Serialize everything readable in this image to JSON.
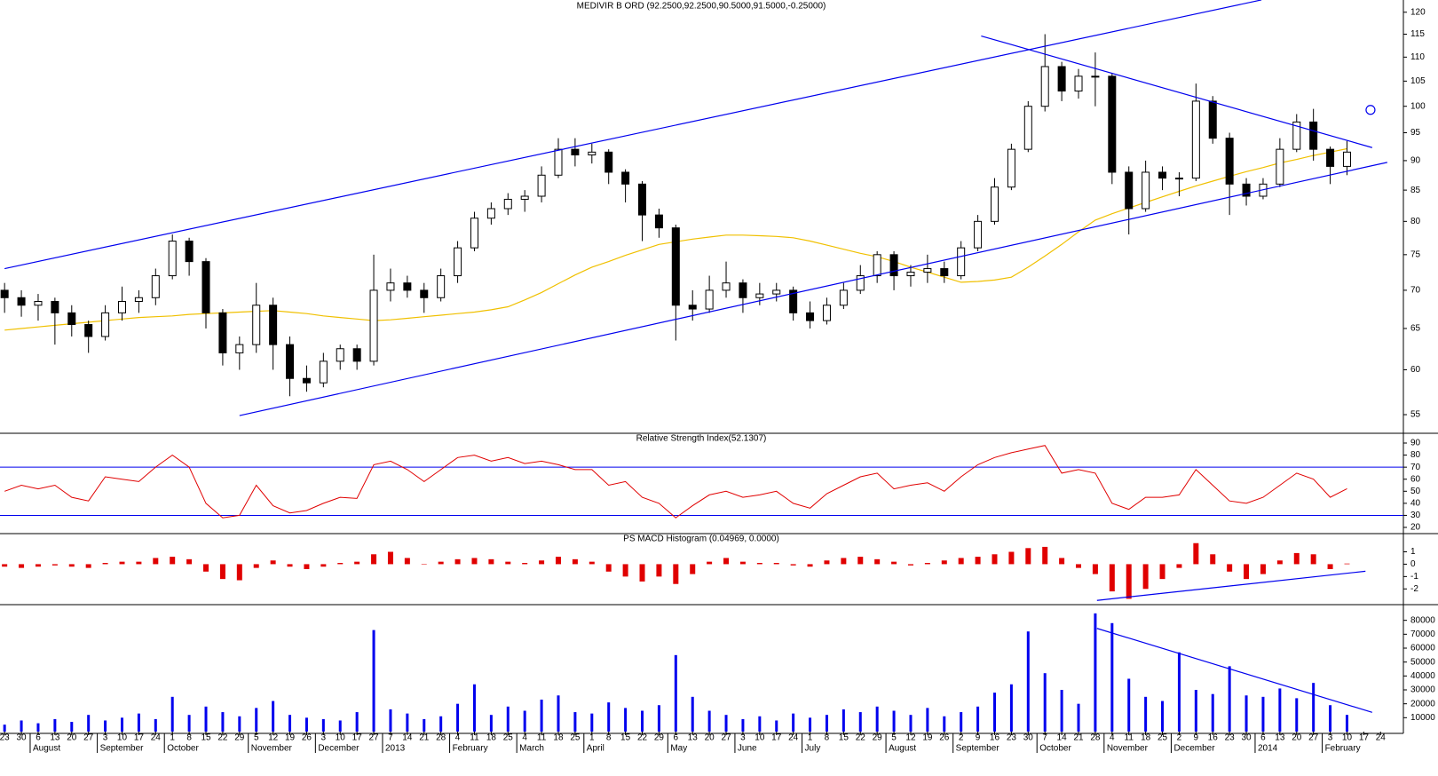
{
  "chart_data": [
    {
      "type": "candlestick",
      "title": "MEDIVIR B ORD (92.2500,92.2500,90.5000,91.5000,-0.25000)",
      "open": [
        70,
        69,
        68,
        68.5,
        67,
        65.5,
        64,
        67,
        68.5,
        69,
        72,
        77,
        74,
        67,
        62,
        63,
        68,
        63,
        59,
        58.5,
        61,
        62.5,
        61,
        70,
        71,
        70,
        69,
        72,
        76,
        80.5,
        82,
        83.5,
        84,
        87.5,
        92,
        91,
        91.5,
        88,
        86,
        81,
        79,
        68,
        67.5,
        70,
        71,
        69,
        69.5,
        70,
        67,
        66,
        68,
        70,
        72,
        75,
        72,
        72.5,
        73,
        72,
        76,
        80,
        85.5,
        92,
        100,
        108,
        103,
        106,
        106,
        88,
        82,
        88,
        87,
        87,
        101,
        94,
        86,
        84,
        86,
        92,
        97,
        92,
        89
      ],
      "high": [
        71,
        70,
        69.5,
        69,
        68,
        66,
        68,
        70.5,
        70,
        73,
        78,
        77.5,
        74.5,
        67.5,
        64,
        71,
        69,
        64,
        60.5,
        62,
        63,
        63,
        75,
        73,
        72,
        71,
        73,
        77,
        81.5,
        83,
        84.5,
        85,
        89,
        94,
        94,
        93,
        92,
        88.5,
        86.5,
        82,
        79.5,
        70,
        72,
        74,
        71.5,
        71,
        71,
        70.5,
        68.5,
        69,
        71,
        73.5,
        75.5,
        75.5,
        73.5,
        75,
        74,
        77,
        81,
        87,
        93,
        101,
        115,
        109,
        107.5,
        111,
        106.5,
        89,
        90,
        89,
        88,
        104.5,
        102,
        95,
        87,
        87,
        94,
        98.5,
        99.5,
        92.5,
        93.5
      ],
      "low": [
        67,
        66.5,
        66,
        63,
        64,
        62,
        63.5,
        66,
        67,
        68,
        71.5,
        72,
        65,
        60.5,
        60,
        62,
        60,
        57,
        57.5,
        58,
        60,
        60,
        60.5,
        68.5,
        69,
        67,
        68.5,
        71,
        75.5,
        79.5,
        81,
        81.5,
        83,
        87,
        89,
        89.5,
        86,
        83,
        77,
        77.5,
        63.5,
        66,
        67,
        69,
        67,
        68,
        68.5,
        66,
        65,
        65.5,
        67.5,
        69.5,
        71,
        70,
        70.5,
        71,
        71,
        71.5,
        75.5,
        79.5,
        85,
        91.5,
        99,
        101,
        101.5,
        100,
        86,
        78,
        81.5,
        85,
        84,
        86.5,
        93,
        81,
        82.5,
        83.5,
        85.5,
        91.5,
        90,
        86,
        87.5
      ],
      "close": [
        69,
        68,
        68.5,
        67,
        65.5,
        64,
        67,
        68.5,
        69,
        72,
        77,
        74,
        67,
        62,
        63,
        68,
        63,
        59,
        58.5,
        61,
        62.5,
        61,
        70,
        71,
        70,
        69,
        72,
        76,
        80.5,
        82,
        83.5,
        84,
        87.5,
        92,
        91,
        91.5,
        88,
        86,
        81,
        79,
        68,
        67.5,
        70,
        71,
        69,
        69.5,
        70,
        67,
        66,
        68,
        70,
        72,
        75,
        72,
        72.5,
        73,
        72,
        76,
        80,
        85.5,
        92,
        100,
        108,
        103,
        106,
        106,
        88,
        82,
        88,
        87,
        87,
        101,
        94,
        86,
        84,
        86,
        92,
        97,
        92,
        89,
        91.5
      ],
      "up_color": "#ffffff",
      "down_color": "#000000",
      "edge_color": "#000000",
      "ma": {
        "color": "#f0c000",
        "values": [
          64.8,
          65,
          65.2,
          65.4,
          65.6,
          65.8,
          66,
          66.2,
          66.4,
          66.5,
          66.6,
          66.8,
          66.9,
          67,
          67.1,
          67.2,
          67.3,
          67.1,
          66.9,
          66.6,
          66.4,
          66.2,
          66,
          66.1,
          66.3,
          66.5,
          66.7,
          66.9,
          67.1,
          67.4,
          67.8,
          68.7,
          69.7,
          70.9,
          72.1,
          73.2,
          74,
          74.9,
          75.7,
          76.5,
          76.9,
          77.3,
          77.6,
          77.9,
          77.9,
          77.8,
          77.7,
          77.5,
          77,
          76.4,
          75.8,
          75.2,
          74.7,
          74,
          73.2,
          72.5,
          71.8,
          71.1,
          71.2,
          71.4,
          71.8,
          73.2,
          74.8,
          76.5,
          78.4,
          80.2,
          81.2,
          82.1,
          83,
          83.9,
          84.8,
          85.7,
          86.5,
          87.3,
          88.1,
          88.8,
          89.6,
          90.2,
          90.9,
          91.5,
          92.1
        ]
      },
      "log": true,
      "ylim": [
        53.6,
        121.2
      ],
      "yticks": [
        55,
        60,
        65,
        70,
        75,
        80,
        85,
        90,
        95,
        100,
        105,
        110,
        115,
        120
      ],
      "trendline_color": "#0000ee",
      "trendlines": [
        {
          "from": [
            0,
            73
          ],
          "to": [
            74.9,
            122.9
          ]
        },
        {
          "from": [
            14,
            54.9
          ],
          "to": [
            82.4,
            89.7
          ]
        },
        {
          "from": [
            58.2,
            114.6
          ],
          "to": [
            81.5,
            92.3
          ]
        }
      ],
      "marker": [
        81.4,
        99.3
      ]
    },
    {
      "type": "line",
      "title": "Relative Strength Index(52.1307)",
      "color": "#e00000",
      "values": [
        50,
        55,
        52,
        55,
        45,
        42,
        62,
        60,
        58,
        70,
        80,
        70,
        40,
        28,
        30,
        55,
        38,
        32,
        34,
        40,
        45,
        44,
        72,
        75,
        68,
        58,
        68,
        78,
        80,
        75,
        78,
        73,
        75,
        72,
        68,
        68,
        55,
        58,
        45,
        40,
        28,
        38,
        47,
        50,
        45,
        47,
        50,
        40,
        36,
        48,
        55,
        62,
        65,
        52,
        55,
        57,
        50,
        62,
        72,
        78,
        82,
        85,
        88,
        65,
        68,
        65,
        40,
        35,
        45,
        45,
        47,
        68,
        55,
        42,
        40,
        45,
        55,
        65,
        60,
        45,
        52.13
      ],
      "ylim": [
        15,
        97
      ],
      "yticks": [
        20,
        30,
        40,
        50,
        60,
        70,
        80,
        90
      ],
      "levels": [
        30,
        70
      ],
      "level_color": "#0000ee"
    },
    {
      "type": "bar",
      "title": "PS MACD Histogram (0.04969, 0.0000)",
      "color": "#e00000",
      "values": [
        -0.2,
        -0.3,
        -0.2,
        -0.1,
        -0.2,
        -0.3,
        0.1,
        0.2,
        0.2,
        0.5,
        0.6,
        0.4,
        -0.6,
        -1.2,
        -1.3,
        -0.3,
        0.3,
        -0.2,
        -0.4,
        -0.2,
        0.1,
        0.2,
        0.8,
        1.0,
        0.5,
        0.0,
        0.2,
        0.4,
        0.5,
        0.4,
        0.2,
        0.1,
        0.3,
        0.6,
        0.4,
        0.2,
        -0.6,
        -1.0,
        -1.4,
        -1.0,
        -1.6,
        -0.8,
        0.2,
        0.5,
        0.2,
        0.1,
        0.1,
        -0.1,
        -0.2,
        0.3,
        0.5,
        0.6,
        0.4,
        0.2,
        -0.1,
        0.1,
        0.3,
        0.5,
        0.6,
        0.8,
        1.0,
        1.3,
        1.4,
        0.5,
        -0.3,
        -0.8,
        -2.2,
        -2.8,
        -2.0,
        -1.2,
        -0.3,
        1.7,
        0.8,
        -0.6,
        -1.2,
        -0.8,
        0.3,
        0.9,
        0.8,
        -0.4,
        0.05
      ],
      "ylim": [
        -3.2,
        2.4
      ],
      "yticks": [
        1,
        0,
        -1,
        -2
      ],
      "trendline_color": "#0000ee",
      "trendlines": [
        {
          "from": [
            65.1,
            -2.93
          ],
          "to": [
            81.1,
            -0.57
          ]
        }
      ]
    },
    {
      "type": "bar",
      "color": "#0000ee",
      "categories": [
        "23",
        "30",
        "6",
        "13",
        "20",
        "27",
        "3",
        "10",
        "17",
        "24",
        "1",
        "8",
        "15",
        "22",
        "29",
        "5",
        "12",
        "19",
        "26",
        "3",
        "10",
        "17",
        "27",
        "7",
        "14",
        "21",
        "28",
        "4",
        "11",
        "18",
        "25",
        "4",
        "11",
        "18",
        "25",
        "1",
        "8",
        "15",
        "22",
        "29",
        "6",
        "13",
        "20",
        "27",
        "3",
        "10",
        "17",
        "24",
        "1",
        "8",
        "15",
        "22",
        "29",
        "5",
        "12",
        "19",
        "26",
        "2",
        "9",
        "16",
        "23",
        "30",
        "7",
        "14",
        "21",
        "28",
        "4",
        "11",
        "18",
        "25",
        "2",
        "9",
        "16",
        "23",
        "30",
        "6",
        "13",
        "20",
        "27",
        "3",
        "10",
        "17",
        "24"
      ],
      "months": [
        null,
        null,
        "August",
        null,
        null,
        null,
        "September",
        null,
        null,
        null,
        "October",
        null,
        null,
        null,
        null,
        "November",
        null,
        null,
        null,
        "December",
        null,
        null,
        null,
        "2013",
        null,
        null,
        null,
        "February",
        null,
        null,
        null,
        "March",
        null,
        null,
        null,
        "April",
        null,
        null,
        null,
        null,
        "May",
        null,
        null,
        null,
        "June",
        null,
        null,
        null,
        "July",
        null,
        null,
        null,
        null,
        "August",
        null,
        null,
        null,
        "September",
        null,
        null,
        null,
        null,
        "October",
        null,
        null,
        null,
        "November",
        null,
        null,
        null,
        "December",
        null,
        null,
        null,
        null,
        "2014",
        null,
        null,
        null,
        "February",
        null,
        null,
        null
      ],
      "values": [
        5000,
        8000,
        6000,
        9000,
        7000,
        12000,
        8000,
        10000,
        13000,
        9000,
        25000,
        12000,
        18000,
        14000,
        11000,
        17000,
        22000,
        12000,
        10000,
        9000,
        8000,
        14000,
        73000,
        16000,
        13000,
        9000,
        11000,
        20000,
        34000,
        12000,
        18000,
        15000,
        23000,
        26000,
        14000,
        13000,
        21000,
        17000,
        15000,
        19000,
        55000,
        25000,
        15000,
        12000,
        9000,
        11000,
        8000,
        13000,
        10000,
        12000,
        16000,
        14000,
        18000,
        15000,
        12000,
        17000,
        11000,
        14000,
        18000,
        28000,
        34000,
        72000,
        42000,
        30000,
        20000,
        85000,
        78000,
        38000,
        25000,
        22000,
        57000,
        30000,
        27000,
        47000,
        26000,
        25000,
        31000,
        24000,
        35000,
        19000,
        12000,
        null,
        null
      ],
      "ylim": [
        0,
        90000
      ],
      "yticks": [
        10000,
        20000,
        30000,
        40000,
        50000,
        60000,
        70000,
        80000
      ],
      "trendline_color": "#0000ee",
      "trendlines": [
        {
          "from": [
            65.1,
            74200
          ],
          "to": [
            81.5,
            13850
          ]
        }
      ]
    }
  ]
}
